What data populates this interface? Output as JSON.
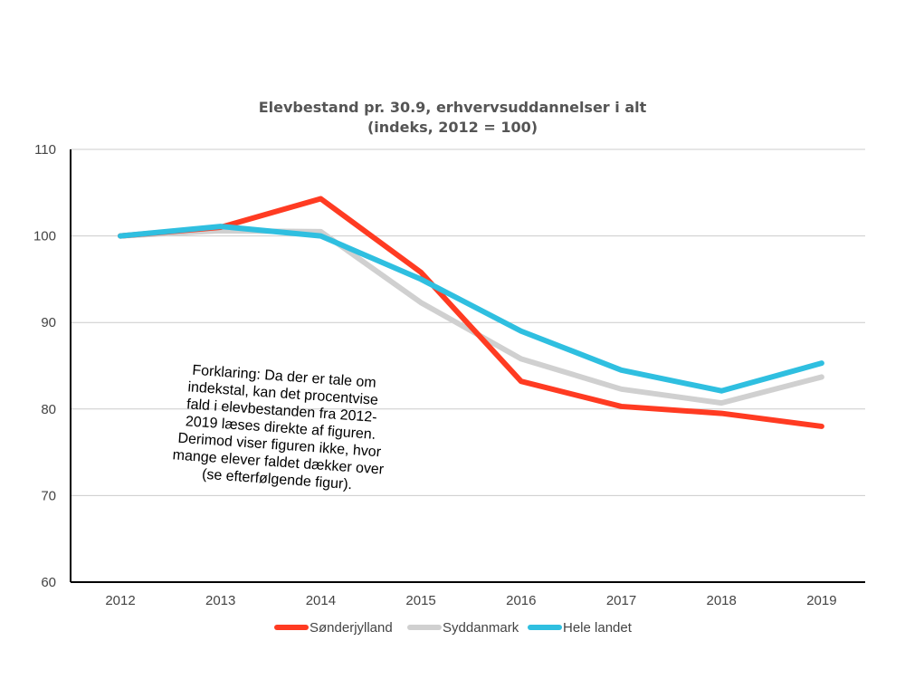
{
  "chart_data": {
    "type": "line",
    "title": "Elevbestand pr. 30.9, erhvervsuddannelser i alt",
    "subtitle": "(indeks, 2012 = 100)",
    "xlabel": "",
    "ylabel": "",
    "categories": [
      "2012",
      "2013",
      "2014",
      "2015",
      "2016",
      "2017",
      "2018",
      "2019"
    ],
    "ylim": [
      60,
      110
    ],
    "yticks": [
      60,
      70,
      80,
      90,
      100,
      110
    ],
    "grid": true,
    "legend_position": "bottom",
    "series": [
      {
        "name": "Sønderjylland",
        "color": "#ff3b22",
        "values": [
          100,
          101.0,
          104.3,
          95.8,
          83.2,
          80.3,
          79.5,
          78.0
        ]
      },
      {
        "name": "Syddanmark",
        "color": "#d0d0d0",
        "values": [
          100,
          100.6,
          100.5,
          92.3,
          85.8,
          82.3,
          80.7,
          83.7
        ]
      },
      {
        "name": "Hele landet",
        "color": "#2fbfe0",
        "values": [
          100,
          101.1,
          100.0,
          95.0,
          89.0,
          84.5,
          82.1,
          85.3
        ]
      }
    ],
    "annotation": [
      "Forklaring: Da der er tale om",
      "indekstal, kan det procentvise",
      "fald i elevbestanden fra 2012-",
      "2019 læses direkte af figuren.",
      "Derimod viser figuren ikke, hvor",
      "mange elever faldet dækker over",
      "(se efterfølgende figur)."
    ]
  }
}
